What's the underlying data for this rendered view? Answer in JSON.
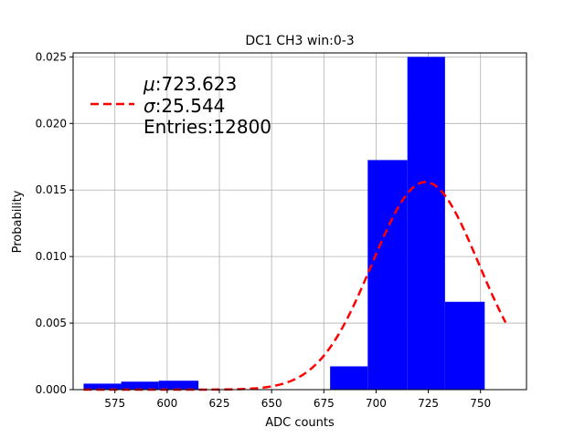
{
  "chart_data": {
    "type": "bar",
    "title": "DC1 CH3 win:0-3",
    "xlabel": "ADC counts",
    "ylabel": "Probability",
    "xlim": [
      555,
      772
    ],
    "ylim": [
      0,
      0.0253
    ],
    "x_ticks": [
      575,
      600,
      625,
      650,
      675,
      700,
      725,
      750
    ],
    "x_tick_labels": [
      "575",
      "600",
      "625",
      "650",
      "675",
      "700",
      "725",
      "750"
    ],
    "y_ticks": [
      0,
      0.005,
      0.01,
      0.015,
      0.02,
      0.025
    ],
    "y_tick_labels": [
      "0.000",
      "0.005",
      "0.010",
      "0.015",
      "0.020",
      "0.025"
    ],
    "grid": true,
    "bar_color": "#0000ff",
    "histogram": {
      "bin_edges": [
        560,
        578,
        596,
        615,
        633,
        652,
        670,
        678,
        696,
        715,
        733,
        752
      ],
      "values": [
        0.00045,
        0.0006,
        0.00067,
        0,
        0,
        0,
        0.0,
        0.00175,
        0.01725,
        0.025,
        0.0066
      ]
    },
    "fit": {
      "type": "gaussian",
      "color": "#ff0000",
      "style": "dashed",
      "mu": 723.623,
      "sigma": 25.544,
      "x_range": [
        560,
        762
      ],
      "peak": 0.0156
    },
    "legend": {
      "placement": "upper-left",
      "lines": [
        {
          "symbol": "μ",
          "text": ":723.623"
        },
        {
          "symbol": "σ",
          "text": ":25.544"
        },
        {
          "symbol": "",
          "text": "Entries:12800"
        }
      ]
    }
  }
}
